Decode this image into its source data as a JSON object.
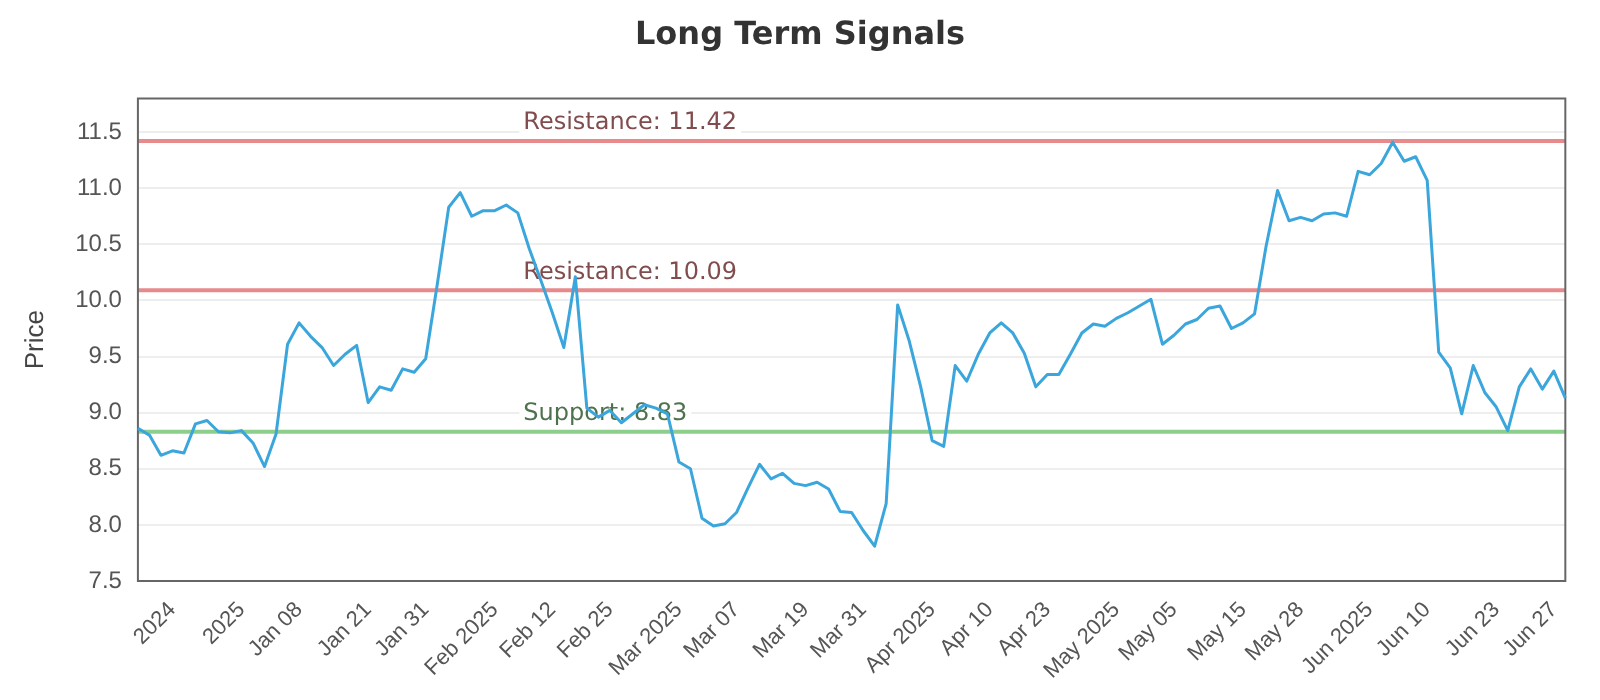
{
  "chart_data": {
    "type": "line",
    "title": "Long Term Signals",
    "ylabel": "Price",
    "categories": [
      null,
      null,
      null,
      "2024",
      null,
      null,
      null,
      null,
      null,
      "2025",
      null,
      null,
      null,
      null,
      "Jan 08",
      null,
      null,
      null,
      null,
      null,
      "Jan 21",
      null,
      null,
      null,
      null,
      "Jan 31",
      null,
      null,
      null,
      null,
      null,
      "Feb 2025",
      null,
      null,
      null,
      null,
      "Feb 12",
      null,
      null,
      null,
      null,
      "Feb 25",
      null,
      null,
      null,
      null,
      null,
      "Mar 2025",
      null,
      null,
      null,
      null,
      "Mar 07",
      null,
      null,
      null,
      null,
      null,
      "Mar 19",
      null,
      null,
      null,
      null,
      "Mar 31",
      null,
      null,
      null,
      null,
      null,
      "Apr 2025",
      null,
      null,
      null,
      null,
      "Apr 10",
      null,
      null,
      null,
      null,
      "Apr 23",
      null,
      null,
      null,
      null,
      null,
      "May 2025",
      null,
      null,
      null,
      null,
      "May 05",
      null,
      null,
      null,
      null,
      null,
      "May 15",
      null,
      null,
      null,
      null,
      "May 28",
      null,
      null,
      null,
      null,
      null,
      "Jun 2025",
      null,
      null,
      null,
      null,
      "Jun 10",
      null,
      null,
      null,
      null,
      null,
      "Jun 23",
      null,
      null,
      null,
      null,
      "Jun 27",
      null
    ],
    "series": [
      {
        "color": "#3aa6dc",
        "values": [
          8.86,
          8.8,
          8.62,
          8.66,
          8.64,
          8.9,
          8.93,
          8.83,
          8.82,
          8.84,
          8.73,
          8.52,
          8.81,
          9.61,
          9.8,
          9.68,
          9.58,
          9.42,
          9.52,
          9.6,
          9.09,
          9.23,
          9.2,
          9.39,
          9.36,
          9.48,
          10.14,
          10.83,
          10.96,
          10.75,
          10.8,
          10.8,
          10.85,
          10.78,
          10.46,
          10.18,
          9.89,
          9.58,
          10.21,
          9.04,
          8.96,
          9.02,
          8.91,
          8.99,
          9.07,
          9.04,
          8.99,
          8.56,
          8.5,
          8.06,
          7.99,
          8.01,
          8.11,
          8.33,
          8.54,
          8.41,
          8.46,
          8.37,
          8.35,
          8.38,
          8.32,
          8.12,
          8.11,
          7.95,
          7.81,
          8.19,
          9.96,
          9.64,
          9.23,
          8.75,
          8.7,
          9.42,
          9.28,
          9.52,
          9.71,
          9.8,
          9.71,
          9.53,
          9.23,
          9.34,
          9.34,
          9.52,
          9.71,
          9.79,
          9.77,
          9.84,
          9.89,
          9.95,
          10.01,
          9.61,
          9.69,
          9.79,
          9.83,
          9.93,
          9.95,
          9.75,
          9.8,
          9.88,
          10.48,
          10.98,
          10.71,
          10.74,
          10.71,
          10.77,
          10.78,
          10.75,
          11.15,
          11.12,
          11.22,
          11.41,
          11.24,
          11.28,
          11.07,
          9.54,
          9.4,
          8.99,
          9.42,
          9.18,
          9.05,
          8.84,
          9.23,
          9.39,
          9.21,
          9.37,
          9.13
        ]
      }
    ],
    "ylim": [
      7.5,
      11.8
    ],
    "yticks": [
      7.5,
      {
        "value": 8,
        "label": "8.0"
      },
      8.5,
      {
        "value": 9,
        "label": "9.0"
      },
      9.5,
      {
        "value": 10,
        "label": "10.0"
      },
      10.5,
      {
        "value": 11,
        "label": "11.0"
      },
      11.5
    ],
    "ref_lines": [
      {
        "axis": "y",
        "value": 11.42,
        "label": "Resistance: 11.42",
        "color": "#e88a8c"
      },
      {
        "axis": "y",
        "value": 10.09,
        "label": "Resistance: 10.09",
        "color": "#e88a8c"
      },
      {
        "axis": "y",
        "value": 8.83,
        "label": "Support: 8.83",
        "color": "#8ccf8c"
      }
    ],
    "grid": "y",
    "legend": false,
    "marker": "none",
    "line_style": "solid"
  }
}
